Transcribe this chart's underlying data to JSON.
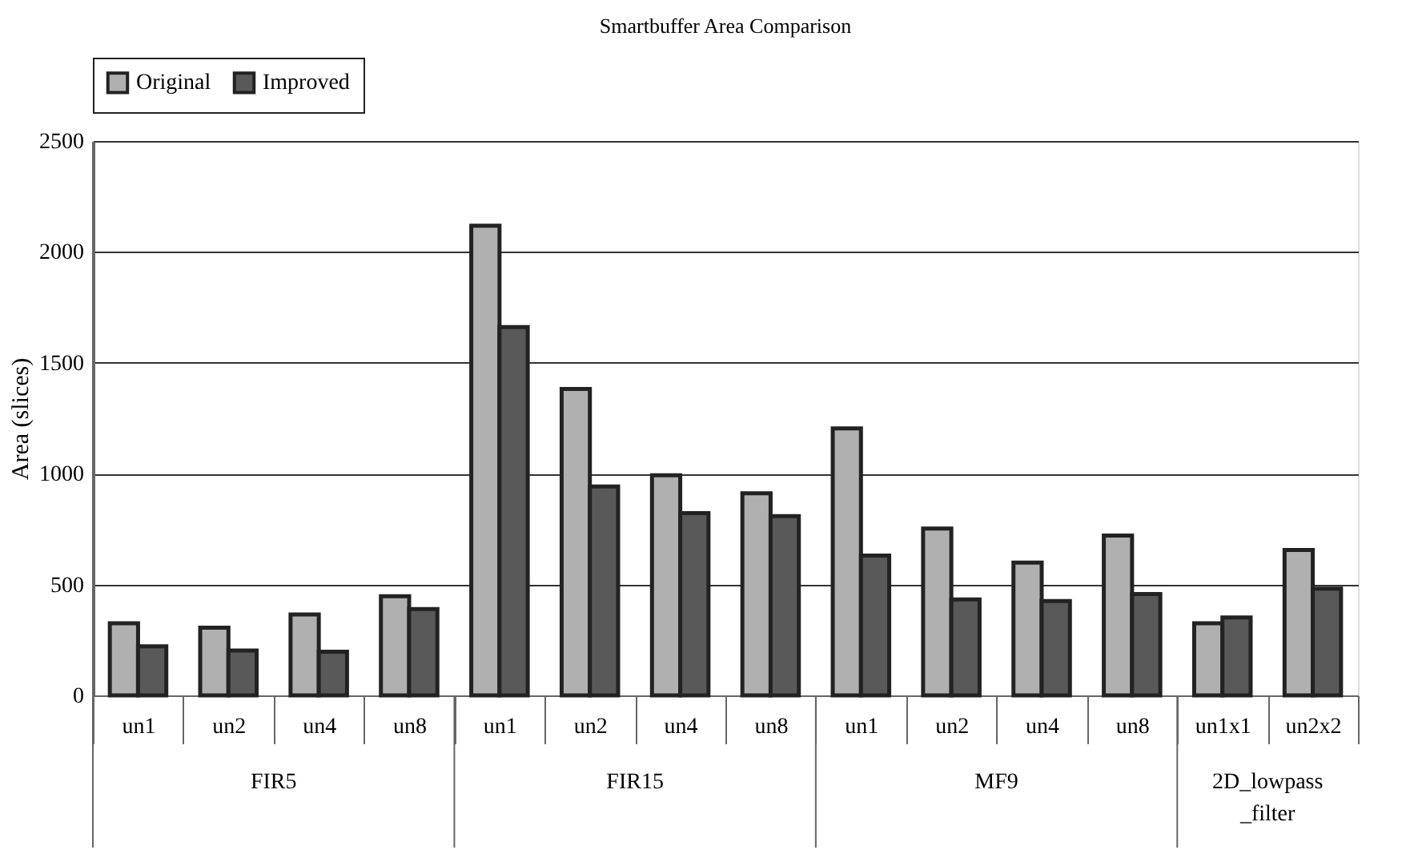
{
  "chart_data": {
    "type": "bar",
    "title": "Smartbuffer Area Comparison",
    "ylabel": "Area  (slices)",
    "categories": [
      "un1",
      "un2",
      "un4",
      "un8",
      "un1",
      "un2",
      "un4",
      "un8",
      "un1",
      "un2",
      "un4",
      "un8",
      "un1x1",
      "un2x2"
    ],
    "series": [
      {
        "name": "Original",
        "color": "#b0b0b0",
        "values": [
          325,
          305,
          365,
          447,
          2118,
          1382,
          993,
          911,
          1204,
          752,
          599,
          721,
          325,
          656
        ]
      },
      {
        "name": "Improved",
        "color": "#595959",
        "values": [
          221,
          202,
          197,
          389,
          1661,
          942,
          822,
          808,
          630,
          433,
          425,
          457,
          351,
          481
        ]
      }
    ],
    "annotations": [
      "FIR5",
      "FIR15",
      "MF9",
      "2D_lowpass _filter"
    ],
    "ylim": [
      0,
      2500
    ],
    "yticks": [
      0,
      500,
      1000,
      1500,
      2000,
      2500
    ],
    "grid": "y",
    "legend": "top"
  }
}
